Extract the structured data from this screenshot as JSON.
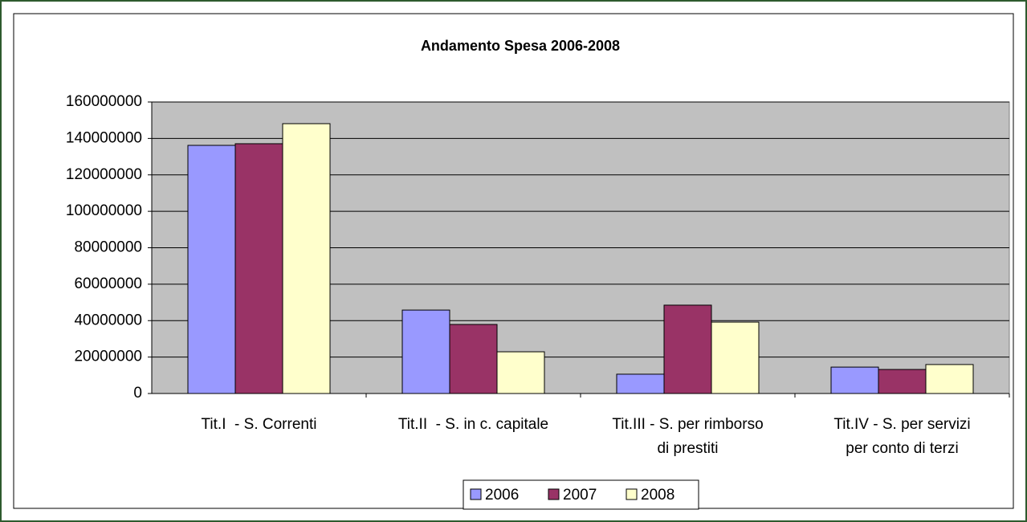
{
  "chart_data": {
    "type": "bar",
    "title": "Andamento Spesa 2006-2008",
    "categories": [
      "Tit.I  - S. Correnti",
      "Tit.II  - S. in c. capitale",
      "Tit.III - S. per rimborso\ndi prestiti",
      "Tit.IV - S. per servizi\nper conto di terzi"
    ],
    "series": [
      {
        "name": "2006",
        "color": "#9999ff",
        "values": [
          136200000,
          45800000,
          10600000,
          14500000
        ]
      },
      {
        "name": "2007",
        "color": "#993366",
        "values": [
          137100000,
          37900000,
          48500000,
          13200000
        ]
      },
      {
        "name": "2008",
        "color": "#ffffcc",
        "values": [
          148100000,
          22900000,
          39200000,
          15900000
        ]
      }
    ],
    "ylim": [
      0,
      160000000
    ],
    "yticks": [
      0,
      20000000,
      40000000,
      60000000,
      80000000,
      100000000,
      120000000,
      140000000,
      160000000
    ],
    "grid": true,
    "plot_background": "#c0c0c0",
    "legend": "bottom"
  }
}
